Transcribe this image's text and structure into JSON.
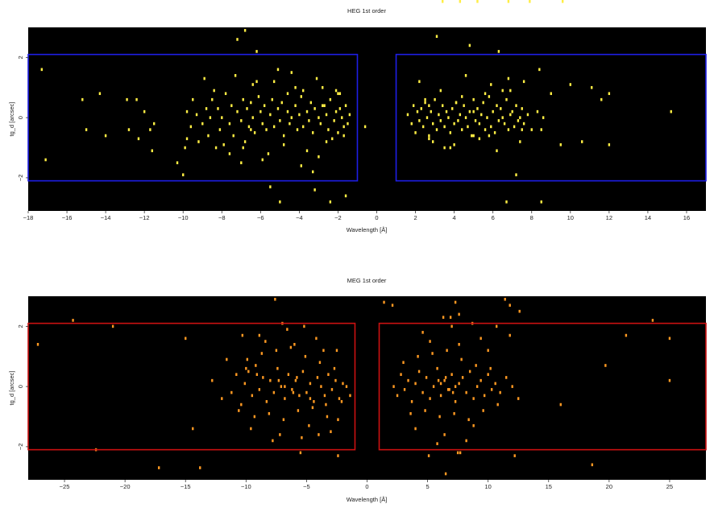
{
  "chart_data": [
    {
      "type": "heatmap",
      "title": "HEG 1st order",
      "xlabel": "Wavelength [Å]",
      "ylabel": "tg_d [arcsec]",
      "xlim": [
        -18,
        17
      ],
      "ylim": [
        -3.1,
        3
      ],
      "xticks": [
        -18,
        -16,
        -14,
        -12,
        -10,
        -8,
        -6,
        -4,
        -2,
        0,
        2,
        4,
        6,
        8,
        10,
        12,
        14,
        16
      ],
      "yticks": [
        -2,
        0,
        2
      ],
      "grid": false,
      "colors": {
        "events": "#ffee44",
        "region": "#1e1ee6"
      },
      "regions": [
        {
          "x": [
            -18,
            -1
          ],
          "y": [
            -2.1,
            2.1
          ]
        },
        {
          "x": [
            1,
            17
          ],
          "y": [
            -2.1,
            2.1
          ]
        }
      ],
      "events": {
        "x": [
          -17.3,
          -17.1,
          -15.2,
          -15.0,
          -14.3,
          -14.0,
          -12.9,
          -12.8,
          -12.4,
          -12.0,
          -11.7,
          -11.6,
          -11.5,
          -10.3,
          -10.0,
          -9.9,
          -9.8,
          -9.6,
          -9.5,
          -9.3,
          -9.2,
          -9.0,
          -8.8,
          -8.7,
          -8.6,
          -8.5,
          -8.3,
          -8.2,
          -8.1,
          -8.0,
          -7.8,
          -7.6,
          -7.5,
          -7.4,
          -7.2,
          -7.0,
          -6.9,
          -6.8,
          -6.7,
          -6.6,
          -6.5,
          -6.4,
          -6.3,
          -6.1,
          -6.0,
          -5.9,
          -5.8,
          -5.7,
          -5.5,
          -5.4,
          -5.3,
          -5.1,
          -5.0,
          -4.9,
          -4.8,
          -4.6,
          -4.5,
          -4.4,
          -4.2,
          -4.1,
          -4.0,
          -3.9,
          -3.8,
          -3.6,
          -3.5,
          -3.4,
          -3.3,
          -3.2,
          -3.0,
          -2.9,
          -2.8,
          -2.6,
          -2.5,
          -2.4,
          -2.2,
          -2.1,
          -2.0,
          -1.9,
          -1.8,
          -1.7,
          -1.6,
          -1.5,
          -1.4,
          -7.6,
          -7.3,
          -6.9,
          -6.4,
          -5.9,
          -5.3,
          -4.8,
          -4.2,
          -3.6,
          -3.1,
          -2.6,
          -2.1,
          -1.7,
          -8.4,
          -7.9,
          -6.2,
          -5.6,
          -4.4,
          -3.9,
          -2.8,
          -2.3,
          -9.8,
          -8.9,
          -7.0,
          -5.1,
          -3.3,
          -2.0,
          -6.5,
          -4.6,
          -3.0,
          -2.7,
          -12.3,
          -7.2,
          -6.8,
          -6.2,
          -5.5,
          -5.0,
          -3.8,
          -3.2,
          -2.4,
          -1.9,
          -1.6,
          -0.6,
          1.6,
          1.8,
          1.9,
          2.0,
          2.1,
          2.2,
          2.3,
          2.4,
          2.5,
          2.6,
          2.7,
          2.8,
          2.9,
          3.0,
          3.1,
          3.2,
          3.3,
          3.4,
          3.5,
          3.6,
          3.7,
          3.8,
          3.9,
          4.0,
          4.1,
          4.2,
          4.3,
          4.4,
          4.5,
          4.6,
          4.7,
          4.8,
          4.9,
          5.0,
          5.1,
          5.2,
          5.3,
          5.4,
          5.5,
          5.6,
          5.7,
          5.8,
          5.9,
          6.0,
          6.1,
          6.2,
          6.3,
          6.4,
          6.5,
          6.6,
          6.7,
          6.8,
          6.9,
          7.0,
          7.1,
          7.2,
          7.3,
          7.4,
          7.5,
          7.6,
          7.8,
          8.0,
          8.3,
          8.6,
          9.0,
          9.5,
          10.0,
          10.6,
          11.1,
          12.0,
          2.2,
          2.7,
          3.3,
          3.8,
          4.4,
          5.0,
          5.6,
          6.2,
          6.8,
          7.4,
          2.5,
          3.5,
          4.6,
          5.8,
          6.9,
          2.9,
          4.1,
          5.3,
          6.5,
          7.6,
          3.1,
          4.8,
          6.3,
          7.2,
          8.4,
          6.7,
          8.5,
          8.5,
          7.5,
          5.9,
          5.0,
          2.7,
          4.0,
          11.6,
          15.2,
          12.0,
          9.6,
          5.2,
          6.8,
          7.9,
          3.4,
          4.3
        ],
        "y": [
          1.6,
          -1.4,
          0.6,
          -0.4,
          0.8,
          -0.6,
          0.6,
          -0.4,
          0.6,
          0.2,
          -0.4,
          -1.1,
          -0.2,
          -1.5,
          -1.9,
          -1.0,
          0.2,
          -0.3,
          0.6,
          0.1,
          -0.8,
          -0.2,
          0.3,
          -0.6,
          0.0,
          0.6,
          -1.0,
          0.3,
          -0.4,
          0.0,
          0.8,
          -0.2,
          0.4,
          -0.6,
          0.2,
          -0.1,
          0.6,
          -0.8,
          0.3,
          -0.3,
          0.5,
          0.0,
          -0.5,
          0.7,
          0.2,
          -0.2,
          0.4,
          -0.4,
          0.1,
          0.6,
          -0.3,
          0.3,
          -0.1,
          0.5,
          -0.6,
          0.2,
          -0.2,
          0.0,
          0.4,
          -0.4,
          0.1,
          0.7,
          -0.3,
          0.2,
          -0.1,
          0.5,
          -0.5,
          0.3,
          0.0,
          -0.2,
          0.4,
          0.1,
          -0.4,
          0.6,
          -0.1,
          0.2,
          -0.5,
          0.3,
          0.0,
          -0.3,
          0.4,
          -0.2,
          0.1,
          -1.2,
          1.4,
          -1.0,
          1.1,
          -1.4,
          1.2,
          -0.9,
          1.0,
          -1.1,
          1.3,
          -0.8,
          0.9,
          -0.6,
          0.9,
          -0.9,
          1.2,
          -1.2,
          1.5,
          -1.6,
          1.0,
          -0.7,
          -0.7,
          1.3,
          -1.5,
          1.6,
          -1.8,
          0.8,
          -0.4,
          0.8,
          -1.3,
          0.4,
          -0.7,
          2.6,
          2.9,
          2.2,
          -2.3,
          -2.8,
          0.9,
          -2.4,
          -2.8,
          0.8,
          -2.6,
          -0.3,
          0.1,
          -0.2,
          0.4,
          -0.5,
          0.2,
          -0.1,
          0.3,
          -0.3,
          0.5,
          0.0,
          -0.6,
          0.2,
          -0.2,
          0.6,
          -0.4,
          0.1,
          -0.1,
          0.4,
          -0.3,
          0.2,
          0.0,
          -0.5,
          0.3,
          -0.2,
          0.5,
          -0.1,
          0.1,
          -0.4,
          0.4,
          0.0,
          -0.3,
          0.2,
          -0.6,
          0.6,
          -0.1,
          0.3,
          -0.2,
          0.1,
          0.5,
          -0.4,
          0.0,
          0.7,
          -0.3,
          0.2,
          -0.5,
          0.4,
          -0.1,
          0.3,
          0.0,
          -0.2,
          0.6,
          -0.4,
          0.1,
          0.2,
          -0.3,
          0.4,
          -0.1,
          0.0,
          0.3,
          -0.2,
          0.1,
          -0.4,
          0.2,
          0.0,
          0.8,
          -0.9,
          1.1,
          -0.8,
          1.0,
          -0.9,
          1.2,
          -0.7,
          0.9,
          -1.0,
          0.7,
          -0.6,
          0.8,
          -1.1,
          1.3,
          -0.8,
          0.6,
          -1.0,
          1.4,
          -0.6,
          0.9,
          -0.8,
          0.5,
          -0.7,
          0.9,
          1.2,
          2.7,
          2.4,
          2.2,
          -1.9,
          1.6,
          -2.8,
          -2.8,
          -0.4,
          -0.4,
          1.1,
          0.2,
          0.4,
          -0.9,
          0.6,
          0.2,
          0.8
        ]
      }
    },
    {
      "type": "heatmap",
      "title": "MEG 1st order",
      "xlabel": "Wavelength [Å]",
      "ylabel": "tg_d [arcsec]",
      "xlim": [
        -28,
        28
      ],
      "ylim": [
        -3.1,
        3
      ],
      "xticks": [
        -25,
        -20,
        -15,
        -10,
        -5,
        0,
        5,
        10,
        15,
        20,
        25
      ],
      "yticks": [
        -2,
        0,
        2
      ],
      "grid": false,
      "colors": {
        "events": "#ff9922",
        "region": "#cc1111"
      },
      "regions": [
        {
          "x": [
            -28,
            -1
          ],
          "y": [
            -2.1,
            2.1
          ]
        },
        {
          "x": [
            1,
            28
          ],
          "y": [
            -2.1,
            2.1
          ]
        }
      ],
      "events": {
        "x": [
          -27.2,
          -24.3,
          -22.4,
          -21.0,
          -15.0,
          -13.8,
          -12.8,
          -12.0,
          -11.6,
          -11.2,
          -10.8,
          -10.4,
          -10.1,
          -9.8,
          -9.5,
          -9.2,
          -8.9,
          -8.6,
          -8.3,
          -8.0,
          -7.7,
          -7.4,
          -7.1,
          -6.8,
          -6.5,
          -6.2,
          -5.9,
          -5.6,
          -5.3,
          -5.0,
          -4.7,
          -4.4,
          -4.1,
          -3.8,
          -3.5,
          -3.2,
          -2.9,
          -2.6,
          -2.3,
          -2.0,
          -1.7,
          -1.4,
          -10.6,
          -9.9,
          -9.3,
          -8.7,
          -8.1,
          -7.5,
          -6.9,
          -6.3,
          -5.7,
          -5.1,
          -4.5,
          -3.9,
          -3.3,
          -2.7,
          -2.1,
          -9.6,
          -8.4,
          -7.2,
          -6.0,
          -4.8,
          -3.6,
          -2.4,
          -8.9,
          -7.8,
          -6.6,
          -5.4,
          -4.2,
          -3.0,
          -10.0,
          -7.0,
          -5.5,
          -4.0,
          -2.5,
          -7.3,
          -6.1,
          -9.1,
          -3.4,
          -6.8,
          -5.8,
          -4.7,
          -17.2,
          -14.4,
          -10.3,
          -2.4,
          -7.6,
          -5.2,
          2.2,
          2.5,
          2.8,
          3.1,
          3.4,
          3.7,
          4.0,
          4.3,
          4.6,
          4.9,
          5.2,
          5.5,
          5.8,
          6.1,
          6.4,
          6.7,
          7.0,
          7.3,
          7.6,
          7.9,
          8.2,
          8.5,
          8.8,
          9.1,
          9.4,
          9.7,
          10.0,
          10.3,
          10.6,
          11.0,
          11.5,
          12.0,
          12.5,
          3.0,
          3.6,
          4.2,
          4.8,
          5.4,
          6.0,
          6.6,
          7.2,
          7.8,
          8.4,
          9.0,
          9.6,
          10.2,
          10.8,
          4.0,
          5.2,
          6.4,
          7.6,
          8.8,
          10.0,
          4.6,
          5.8,
          7.0,
          8.2,
          9.4,
          5.1,
          6.3,
          7.5,
          8.7,
          6.1,
          6.8,
          6.5,
          7.1,
          5.9,
          7.3,
          11.8,
          12.6,
          11.4,
          7.3,
          6.9,
          7.6,
          6.5,
          11.8,
          16.0,
          19.7,
          21.4,
          23.6,
          25.0,
          25.0,
          18.6,
          12.2,
          10.7,
          7.7,
          1.4,
          2.1
        ],
        "y": [
          1.4,
          2.2,
          -2.1,
          2.0,
          1.6,
          -2.7,
          0.2,
          -0.4,
          0.9,
          -0.2,
          0.4,
          -0.6,
          0.1,
          0.5,
          -0.3,
          0.7,
          -0.1,
          0.3,
          -0.5,
          0.2,
          -0.2,
          0.6,
          0.0,
          -0.4,
          0.4,
          -0.1,
          0.2,
          -0.3,
          0.5,
          -0.2,
          0.1,
          -0.5,
          0.3,
          0.0,
          -0.3,
          0.4,
          -0.1,
          0.2,
          -0.4,
          0.1,
          0.0,
          -0.3,
          -0.8,
          0.9,
          -1.0,
          1.1,
          -0.9,
          1.2,
          -1.1,
          1.3,
          -0.8,
          1.0,
          -0.7,
          0.8,
          -1.0,
          0.6,
          -0.5,
          -1.4,
          1.5,
          -1.6,
          1.4,
          -1.3,
          1.2,
          -1.1,
          1.7,
          -1.8,
          1.9,
          -1.7,
          1.6,
          -1.5,
          0.6,
          2.1,
          -2.2,
          -1.6,
          1.2,
          0.2,
          -0.2,
          0.4,
          -0.6,
          0.0,
          0.3,
          -0.4,
          -2.7,
          -1.4,
          1.7,
          -2.3,
          2.9,
          2.0,
          0.0,
          -0.3,
          0.4,
          -0.1,
          0.2,
          -0.5,
          0.1,
          0.5,
          -0.2,
          0.3,
          -0.4,
          0.0,
          0.6,
          -0.3,
          0.2,
          -0.1,
          0.4,
          -0.5,
          0.1,
          0.3,
          -0.2,
          0.5,
          -0.4,
          0.0,
          0.2,
          -0.3,
          0.4,
          -0.1,
          0.1,
          -0.2,
          0.3,
          0.0,
          -0.4,
          0.8,
          -0.9,
          1.0,
          -0.8,
          1.1,
          -1.0,
          1.2,
          -0.9,
          0.9,
          -1.1,
          0.7,
          -0.8,
          0.6,
          -0.6,
          -1.4,
          1.5,
          -1.6,
          1.4,
          -1.3,
          1.2,
          1.8,
          -1.9,
          2.0,
          -1.8,
          1.6,
          -2.3,
          2.3,
          -2.2,
          2.1,
          0.1,
          -0.1,
          0.3,
          -0.2,
          0.2,
          0.0,
          2.7,
          2.5,
          2.9,
          2.8,
          2.3,
          2.4,
          -2.9,
          1.7,
          -0.6,
          0.7,
          1.7,
          2.2,
          1.6,
          0.2,
          -2.6,
          -2.3,
          2.0,
          -2.2,
          2.8,
          2.7
        ]
      }
    }
  ]
}
